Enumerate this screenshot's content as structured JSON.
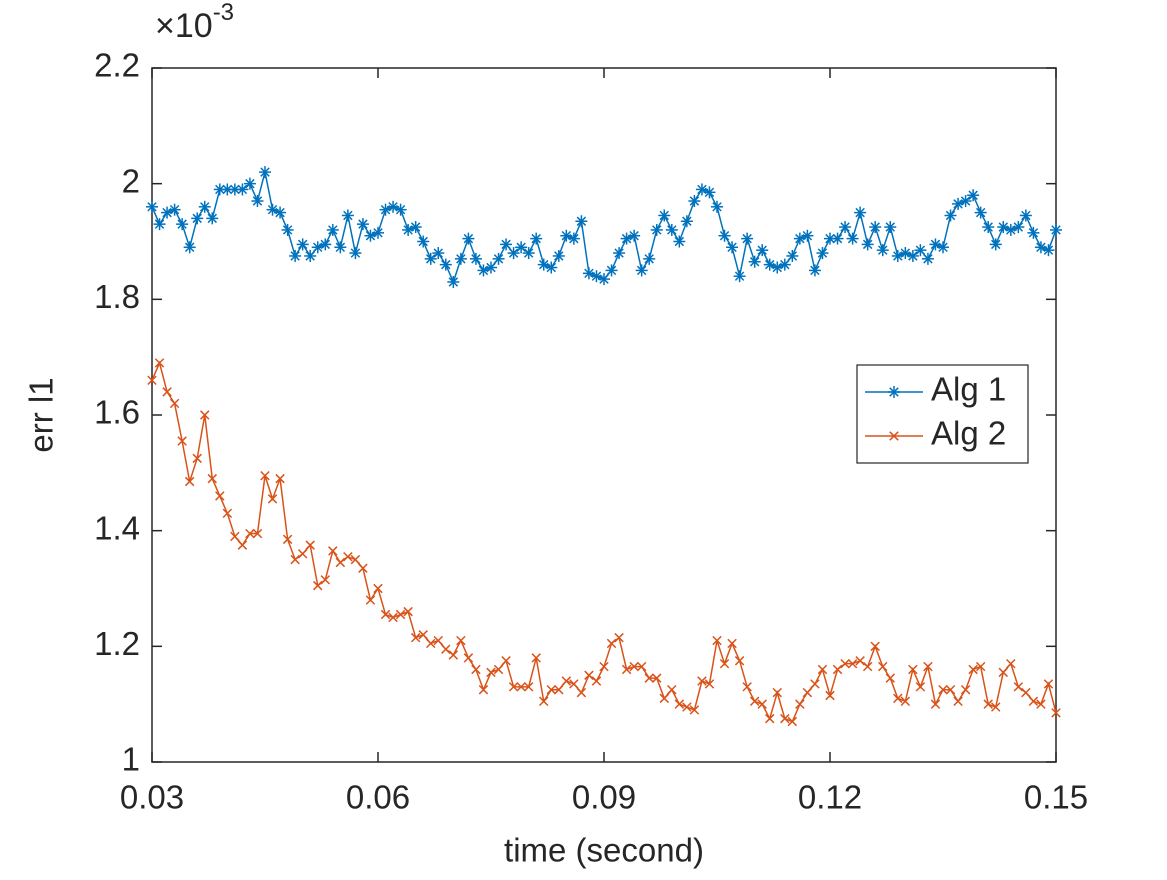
{
  "chart_data": {
    "type": "line",
    "xlabel": "time (second)",
    "ylabel": "err l1",
    "y_exponent": "×10",
    "y_exponent_power": "-3",
    "xlim": [
      0.03,
      0.15
    ],
    "xticks": [
      0.03,
      0.06,
      0.09,
      0.12,
      0.15
    ],
    "ylim": [
      1,
      2.2
    ],
    "yticks": [
      1,
      1.2,
      1.4,
      1.6,
      1.8,
      2,
      2.2
    ],
    "grid": false,
    "legend": "northeast",
    "x": [
      0.03,
      0.031,
      0.032,
      0.033,
      0.034,
      0.035,
      0.036,
      0.037,
      0.038,
      0.039,
      0.04,
      0.041,
      0.042,
      0.043,
      0.044,
      0.045,
      0.046,
      0.047,
      0.048,
      0.049,
      0.05,
      0.051,
      0.052,
      0.053,
      0.054,
      0.055,
      0.056,
      0.057,
      0.058,
      0.059,
      0.06,
      0.061,
      0.062,
      0.063,
      0.064,
      0.065,
      0.066,
      0.067,
      0.068,
      0.069,
      0.07,
      0.071,
      0.072,
      0.073,
      0.074,
      0.075,
      0.076,
      0.077,
      0.078,
      0.079,
      0.08,
      0.081,
      0.082,
      0.083,
      0.084,
      0.085,
      0.086,
      0.087,
      0.088,
      0.089,
      0.09,
      0.091,
      0.092,
      0.093,
      0.094,
      0.095,
      0.096,
      0.097,
      0.098,
      0.099,
      0.1,
      0.101,
      0.102,
      0.103,
      0.104,
      0.105,
      0.106,
      0.107,
      0.108,
      0.109,
      0.11,
      0.111,
      0.112,
      0.113,
      0.114,
      0.115,
      0.116,
      0.117,
      0.118,
      0.119,
      0.12,
      0.121,
      0.122,
      0.123,
      0.124,
      0.125,
      0.126,
      0.127,
      0.128,
      0.129,
      0.13,
      0.131,
      0.132,
      0.133,
      0.134,
      0.135,
      0.136,
      0.137,
      0.138,
      0.139,
      0.14,
      0.141,
      0.142,
      0.143,
      0.144,
      0.145,
      0.146,
      0.147,
      0.148,
      0.149,
      0.15
    ],
    "series": [
      {
        "name": "Alg 1",
        "color": "#0072BD",
        "marker": "*",
        "values": [
          1.96,
          1.93,
          1.95,
          1.955,
          1.93,
          1.89,
          1.94,
          1.96,
          1.94,
          1.99,
          1.99,
          1.99,
          1.99,
          2.0,
          1.97,
          2.02,
          1.955,
          1.95,
          1.92,
          1.875,
          1.895,
          1.875,
          1.89,
          1.895,
          1.92,
          1.89,
          1.945,
          1.88,
          1.93,
          1.91,
          1.915,
          1.955,
          1.96,
          1.955,
          1.92,
          1.925,
          1.9,
          1.87,
          1.88,
          1.86,
          1.83,
          1.87,
          1.905,
          1.87,
          1.85,
          1.855,
          1.87,
          1.895,
          1.88,
          1.89,
          1.88,
          1.905,
          1.86,
          1.855,
          1.875,
          1.91,
          1.905,
          1.935,
          1.845,
          1.84,
          1.835,
          1.85,
          1.88,
          1.905,
          1.91,
          1.85,
          1.87,
          1.92,
          1.945,
          1.92,
          1.9,
          1.935,
          1.97,
          1.99,
          1.985,
          1.96,
          1.91,
          1.89,
          1.84,
          1.905,
          1.865,
          1.885,
          1.86,
          1.855,
          1.86,
          1.875,
          1.905,
          1.91,
          1.85,
          1.88,
          1.905,
          1.905,
          1.925,
          1.905,
          1.95,
          1.895,
          1.925,
          1.885,
          1.925,
          1.875,
          1.88,
          1.875,
          1.885,
          1.87,
          1.895,
          1.89,
          1.945,
          1.965,
          1.97,
          1.98,
          1.95,
          1.925,
          1.895,
          1.925,
          1.92,
          1.925,
          1.945,
          1.915,
          1.89,
          1.885,
          1.92
        ]
      },
      {
        "name": "Alg 2",
        "color": "#D95319",
        "marker": "x",
        "values": [
          1.66,
          1.69,
          1.64,
          1.62,
          1.555,
          1.485,
          1.525,
          1.6,
          1.49,
          1.46,
          1.43,
          1.39,
          1.375,
          1.395,
          1.395,
          1.495,
          1.455,
          1.49,
          1.385,
          1.35,
          1.36,
          1.375,
          1.305,
          1.315,
          1.365,
          1.345,
          1.355,
          1.35,
          1.335,
          1.28,
          1.3,
          1.255,
          1.25,
          1.255,
          1.26,
          1.215,
          1.22,
          1.205,
          1.21,
          1.195,
          1.185,
          1.21,
          1.18,
          1.16,
          1.125,
          1.155,
          1.16,
          1.175,
          1.13,
          1.13,
          1.13,
          1.18,
          1.105,
          1.125,
          1.125,
          1.14,
          1.135,
          1.12,
          1.15,
          1.14,
          1.165,
          1.205,
          1.215,
          1.16,
          1.165,
          1.165,
          1.145,
          1.145,
          1.11,
          1.125,
          1.1,
          1.095,
          1.09,
          1.14,
          1.135,
          1.21,
          1.17,
          1.205,
          1.175,
          1.13,
          1.105,
          1.1,
          1.075,
          1.12,
          1.075,
          1.07,
          1.1,
          1.12,
          1.135,
          1.16,
          1.115,
          1.16,
          1.17,
          1.17,
          1.175,
          1.165,
          1.2,
          1.165,
          1.145,
          1.11,
          1.105,
          1.16,
          1.13,
          1.165,
          1.1,
          1.125,
          1.125,
          1.105,
          1.125,
          1.16,
          1.165,
          1.1,
          1.095,
          1.155,
          1.17,
          1.13,
          1.12,
          1.105,
          1.1,
          1.135,
          1.085
        ]
      }
    ]
  }
}
